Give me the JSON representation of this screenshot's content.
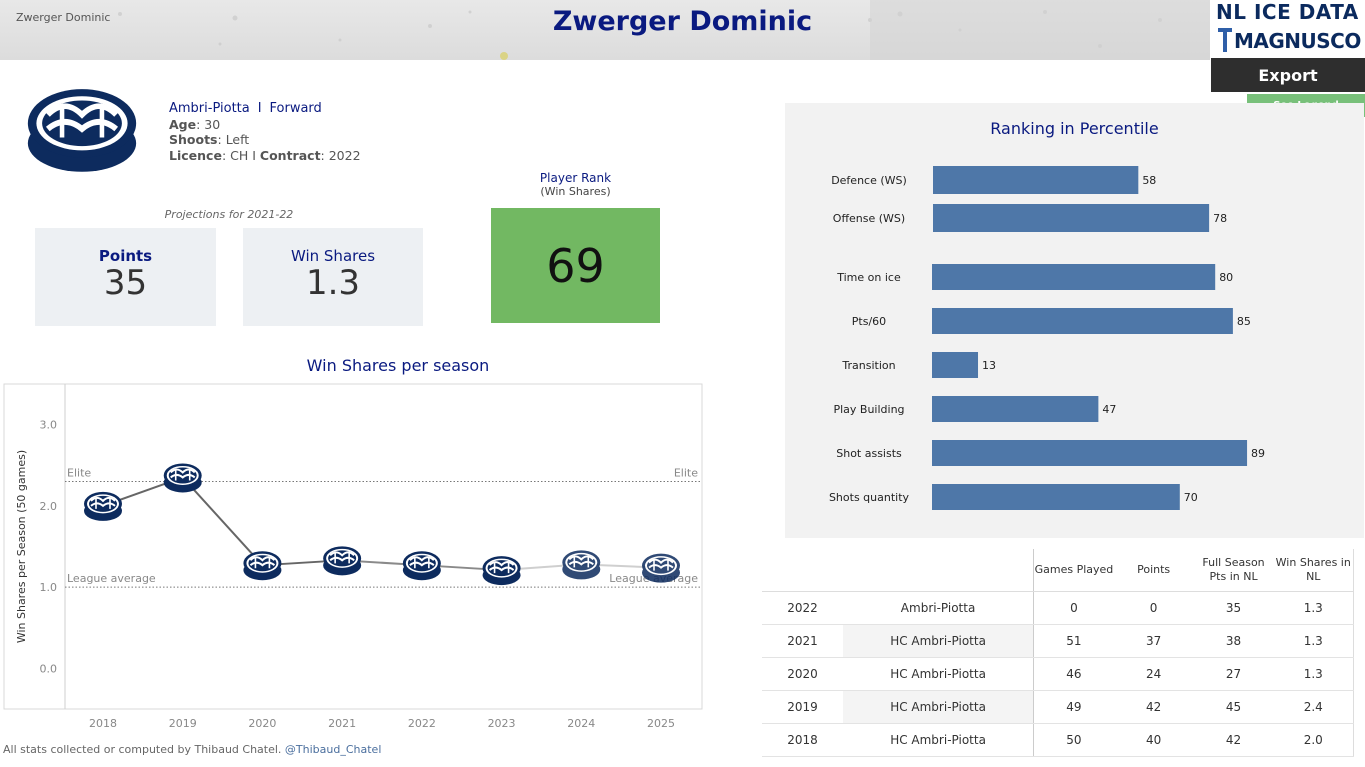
{
  "header": {
    "small_name": "Zwerger Dominic",
    "title": "Zwerger Dominic",
    "logo_top": "NL ICE DATA",
    "logo_bottom": "MAGNUSCORSI",
    "export_label": "Export",
    "legend_label": "See Legend"
  },
  "player": {
    "team": "Ambri-Piotta",
    "separator": "I",
    "position": "Forward",
    "age_label": "Age",
    "age": "30",
    "shoots_label": "Shoots",
    "shoots": "Left",
    "licence_label": "Licence",
    "licence": "CH",
    "contract_label": "Contract",
    "contract": "2022",
    "info_sep": "I"
  },
  "projections": {
    "title": "Projections for 2021-22",
    "points_label": "Points",
    "points": "35",
    "ws_label": "Win Shares",
    "ws": "1.3"
  },
  "rank": {
    "title": "Player Rank",
    "subtitle": "(Win Shares)",
    "value": "69"
  },
  "ws_chart_title": "Win Shares per season",
  "footer": {
    "text": "All stats collected or computed by Thibaud Chatel.",
    "handle": "@Thibaud_Chatel"
  },
  "percentile_title": "Ranking in Percentile",
  "colors": {
    "navy": "#0a1a80",
    "bar": "#4e77a8",
    "rank_green": "#72b862",
    "legend_green": "#78c07a",
    "puck": "#0d2b5e"
  },
  "chart_data": [
    {
      "type": "line",
      "title": "Win Shares per season",
      "xlabel": "",
      "ylabel": "Win Shares per Season (50 games)",
      "x": [
        "2018",
        "2019",
        "2020",
        "2021",
        "2022",
        "2023",
        "2024",
        "2025"
      ],
      "values": [
        2.0,
        2.35,
        1.27,
        1.33,
        1.27,
        1.21,
        1.28,
        1.24
      ],
      "projected_from": "2022",
      "ylim": [
        -0.5,
        3.5
      ],
      "yticks": [
        0.0,
        1.0,
        2.0,
        3.0
      ],
      "reference_lines": [
        {
          "label": "Elite",
          "value": 2.3
        },
        {
          "label": "League average",
          "value": 1.0
        }
      ]
    },
    {
      "type": "bar",
      "orientation": "horizontal",
      "title": "Ranking in Percentile",
      "categories": [
        "Defence (WS)",
        "Offense (WS)",
        "Time on ice",
        "Pts/60",
        "Transition",
        "Play Building",
        "Shot assists",
        "Shots quantity"
      ],
      "values": [
        58,
        78,
        80,
        85,
        13,
        47,
        89,
        70
      ],
      "xlim": [
        0,
        100
      ]
    }
  ],
  "table": {
    "headers": [
      "",
      "",
      "Games Played",
      "Points",
      "Full Season Pts in NL",
      "Win Shares in NL"
    ],
    "rows": [
      [
        "2022",
        "Ambri-Piotta",
        "0",
        "0",
        "35",
        "1.3"
      ],
      [
        "2021",
        "HC Ambri-Piotta",
        "51",
        "37",
        "38",
        "1.3"
      ],
      [
        "2020",
        "HC Ambri-Piotta",
        "46",
        "24",
        "27",
        "1.3"
      ],
      [
        "2019",
        "HC Ambri-Piotta",
        "49",
        "42",
        "45",
        "2.4"
      ],
      [
        "2018",
        "HC Ambri-Piotta",
        "50",
        "40",
        "42",
        "2.0"
      ]
    ]
  }
}
